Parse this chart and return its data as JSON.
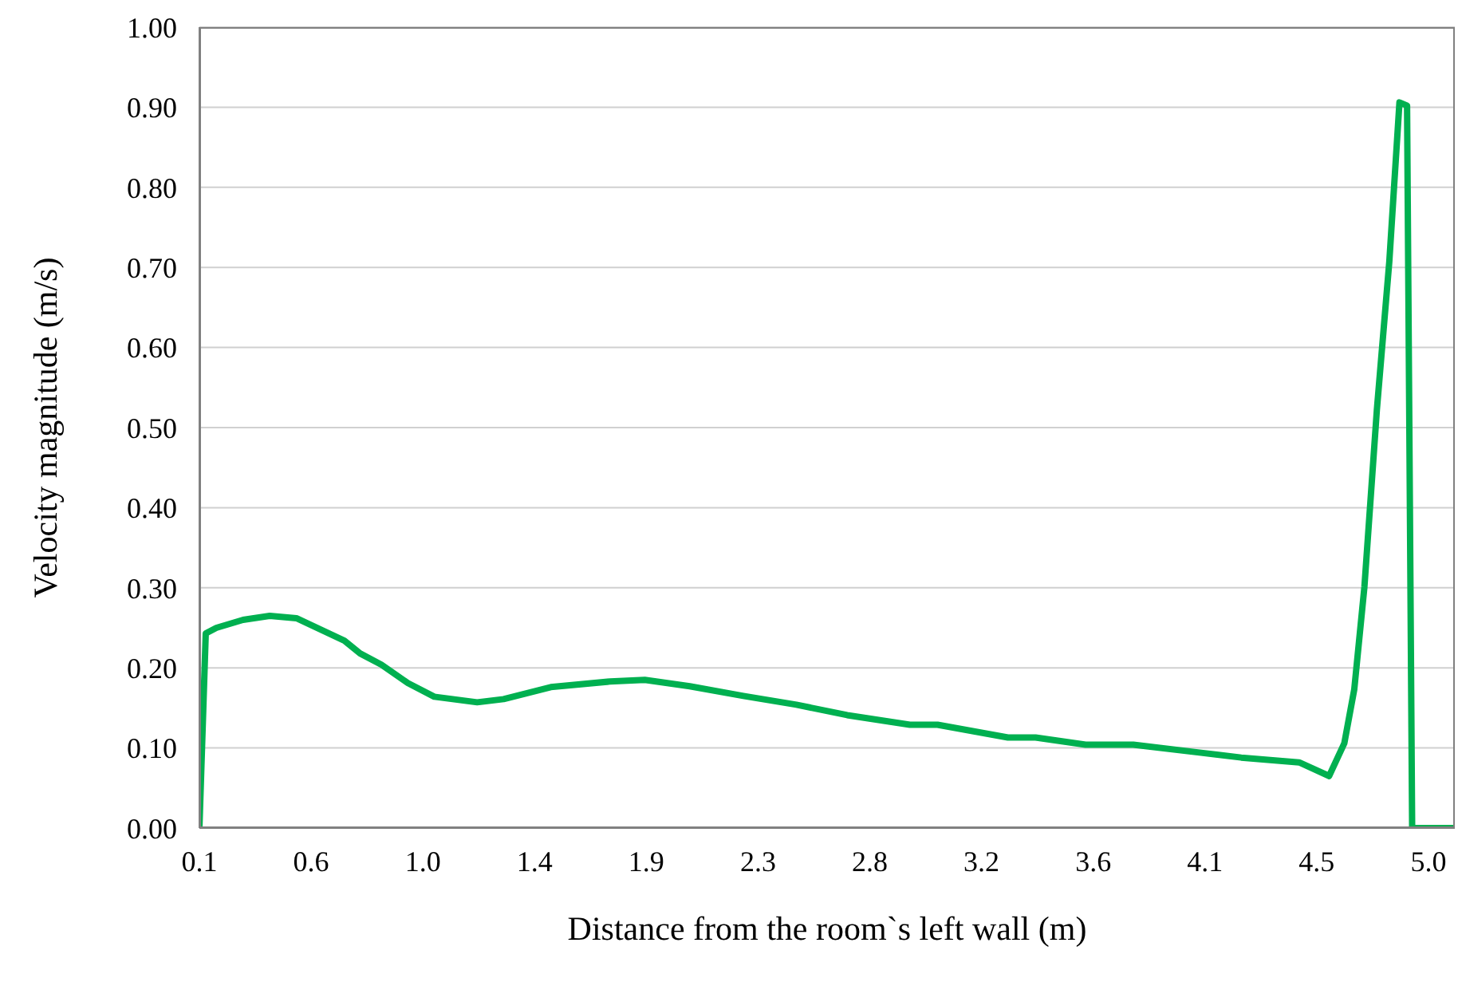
{
  "chart_data": {
    "type": "line",
    "xlabel": "Distance from the room`s left wall (m)",
    "ylabel": "Velocity magnitude (m/s)",
    "x": [
      0.12,
      0.145,
      0.187,
      0.292,
      0.397,
      0.502,
      0.604,
      0.691,
      0.753,
      0.837,
      0.941,
      1.045,
      1.214,
      1.318,
      1.504,
      1.738,
      1.874,
      2.051,
      2.262,
      2.471,
      2.671,
      2.918,
      3.027,
      3.304,
      3.413,
      3.61,
      3.798,
      4.065,
      4.223,
      4.451,
      4.569,
      4.629,
      4.668,
      4.708,
      4.757,
      4.806,
      4.846,
      4.876,
      4.896,
      5.064
    ],
    "series": [
      {
        "color": "#00b050",
        "values": [
          0,
          0.243,
          0.25,
          0.26,
          0.265,
          0.262,
          0.247,
          0.234,
          0.218,
          0.204,
          0.181,
          0.164,
          0.157,
          0.161,
          0.176,
          0.183,
          0.185,
          0.177,
          0.165,
          0.154,
          0.141,
          0.129,
          0.129,
          0.113,
          0.113,
          0.104,
          0.104,
          0.094,
          0.088,
          0.082,
          0.065,
          0.106,
          0.173,
          0.301,
          0.522,
          0.707,
          0.906,
          0.902,
          0,
          0
        ]
      }
    ],
    "xlim": [
      0.12,
      5.064
    ],
    "xticks": [
      {
        "value": 0.12,
        "label": "0.1"
      },
      {
        "value": 0.56,
        "label": "0.6"
      },
      {
        "value": 1.0,
        "label": "1.0"
      },
      {
        "value": 1.44,
        "label": "1.4"
      },
      {
        "value": 1.88,
        "label": "1.9"
      },
      {
        "value": 2.32,
        "label": "2.3"
      },
      {
        "value": 2.76,
        "label": "2.8"
      },
      {
        "value": 3.2,
        "label": "3.2"
      },
      {
        "value": 3.64,
        "label": "3.6"
      },
      {
        "value": 4.08,
        "label": "4.1"
      },
      {
        "value": 4.52,
        "label": "4.5"
      },
      {
        "value": 4.96,
        "label": "5.0"
      }
    ],
    "ylim": [
      0,
      1
    ],
    "yticks": [
      {
        "value": 0,
        "label": "0.00"
      },
      {
        "value": 0.1,
        "label": "0.10"
      },
      {
        "value": 0.2,
        "label": "0.20"
      },
      {
        "value": 0.3,
        "label": "0.30"
      },
      {
        "value": 0.4,
        "label": "0.40"
      },
      {
        "value": 0.5,
        "label": "0.50"
      },
      {
        "value": 0.6,
        "label": "0.60"
      },
      {
        "value": 0.7,
        "label": "0.70"
      },
      {
        "value": 0.8,
        "label": "0.80"
      },
      {
        "value": 0.9,
        "label": "0.90"
      },
      {
        "value": 1,
        "label": "1.00"
      }
    ],
    "grid": "y",
    "legend": false,
    "marker": "none",
    "line_style": "solid"
  }
}
